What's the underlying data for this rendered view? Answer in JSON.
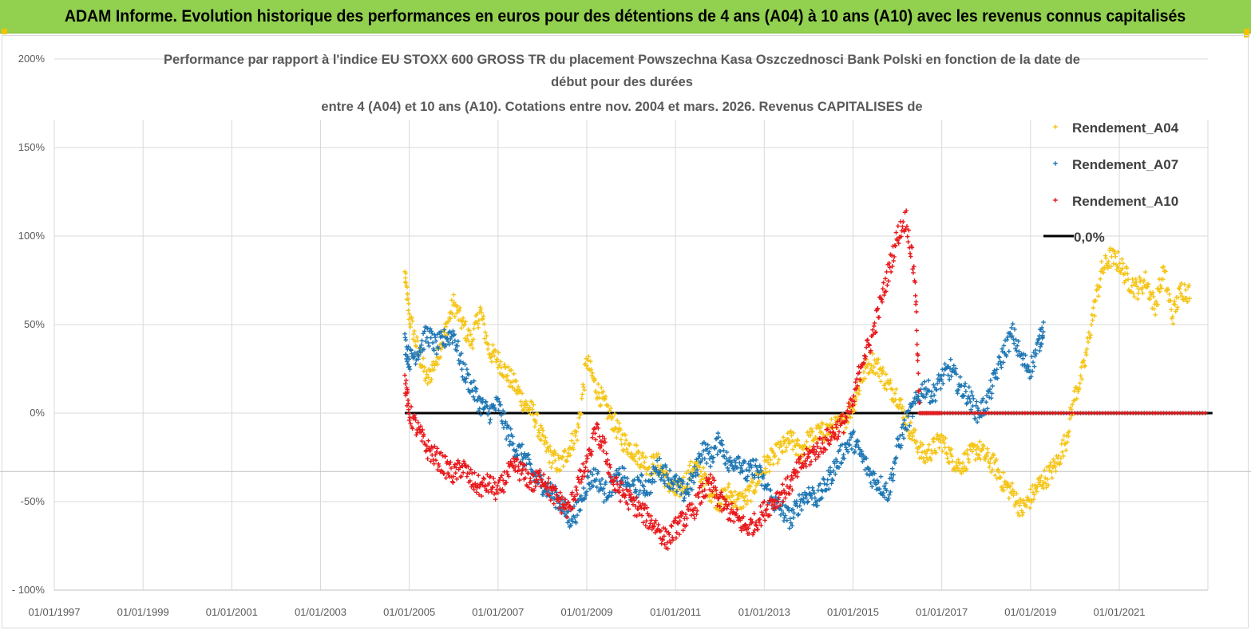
{
  "banner": {
    "title": "ADAM Informe. Evolution historique des performances en euros pour des détentions de 4 ans (A04) à 10 ans (A10) avec les revenus connus capitalisés"
  },
  "colors": {
    "banner_bg": "#92d050",
    "a04": "#f5c518",
    "a07": "#1f77b4",
    "a10": "#e8191c",
    "zero": "#000000"
  },
  "chart_data": {
    "type": "scatter",
    "title_lines": [
      "Performance par rapport à l'indice EU STOXX 600 GROSS TR  du placement Powszechna Kasa Oszczednosci Bank Polski en fonction de la date de",
      "début pour des durées",
      "entre 4 (A04) et 10 ans (A10). Cotations entre nov. 2004 et mars. 2026. Revenus CAPITALISES de"
    ],
    "x_ticks": [
      "01/01/1997",
      "01/01/1999",
      "01/01/2001",
      "01/01/2003",
      "01/01/2005",
      "01/01/2007",
      "01/01/2009",
      "01/01/2011",
      "01/01/2013",
      "01/01/2015",
      "01/01/2017",
      "01/01/2019",
      "01/01/2021"
    ],
    "x_range_years": [
      1997,
      2023.1
    ],
    "y_ticks": [
      "200%",
      "150%",
      "100%",
      "50%",
      "0%",
      "-50%",
      "- 100%"
    ],
    "y_tick_values": [
      200,
      150,
      100,
      50,
      0,
      -50,
      -100
    ],
    "ylim": [
      -100,
      200
    ],
    "legend": [
      "Rendement_A04",
      "Rendement_A07",
      "Rendement_A10",
      "0,0%"
    ],
    "series": [
      {
        "name": "Rendement_A04",
        "points": [
          [
            2004.9,
            78
          ],
          [
            2005.0,
            55
          ],
          [
            2005.2,
            35
          ],
          [
            2005.4,
            18
          ],
          [
            2005.6,
            30
          ],
          [
            2005.8,
            45
          ],
          [
            2006.0,
            62
          ],
          [
            2006.2,
            50
          ],
          [
            2006.4,
            40
          ],
          [
            2006.6,
            58
          ],
          [
            2006.8,
            35
          ],
          [
            2007.0,
            30
          ],
          [
            2007.2,
            22
          ],
          [
            2007.4,
            15
          ],
          [
            2007.6,
            5
          ],
          [
            2007.8,
            0
          ],
          [
            2008.0,
            -15
          ],
          [
            2008.2,
            -25
          ],
          [
            2008.4,
            -30
          ],
          [
            2008.6,
            -20
          ],
          [
            2008.8,
            -10
          ],
          [
            2009.0,
            30
          ],
          [
            2009.2,
            15
          ],
          [
            2009.4,
            5
          ],
          [
            2009.6,
            -5
          ],
          [
            2009.8,
            -15
          ],
          [
            2010.0,
            -20
          ],
          [
            2010.2,
            -25
          ],
          [
            2010.4,
            -30
          ],
          [
            2010.6,
            -28
          ],
          [
            2010.8,
            -38
          ],
          [
            2011.0,
            -45
          ],
          [
            2011.2,
            -40
          ],
          [
            2011.4,
            -30
          ],
          [
            2011.6,
            -35
          ],
          [
            2011.8,
            -45
          ],
          [
            2012.0,
            -50
          ],
          [
            2012.2,
            -45
          ],
          [
            2012.4,
            -50
          ],
          [
            2012.6,
            -48
          ],
          [
            2012.8,
            -40
          ],
          [
            2013.0,
            -30
          ],
          [
            2013.2,
            -25
          ],
          [
            2013.4,
            -20
          ],
          [
            2013.6,
            -15
          ],
          [
            2013.8,
            -22
          ],
          [
            2014.0,
            -15
          ],
          [
            2014.2,
            -12
          ],
          [
            2014.4,
            -10
          ],
          [
            2014.6,
            -8
          ],
          [
            2014.8,
            -5
          ],
          [
            2015.0,
            5
          ],
          [
            2015.2,
            20
          ],
          [
            2015.4,
            30
          ],
          [
            2015.6,
            25
          ],
          [
            2015.8,
            15
          ],
          [
            2016.0,
            10
          ],
          [
            2016.2,
            -5
          ],
          [
            2016.4,
            -15
          ],
          [
            2016.6,
            -25
          ],
          [
            2016.8,
            -20
          ],
          [
            2017.0,
            -15
          ],
          [
            2017.2,
            -25
          ],
          [
            2017.4,
            -30
          ],
          [
            2017.6,
            -25
          ],
          [
            2017.8,
            -20
          ],
          [
            2018.0,
            -25
          ],
          [
            2018.2,
            -30
          ],
          [
            2018.4,
            -40
          ],
          [
            2018.6,
            -45
          ],
          [
            2018.8,
            -55
          ],
          [
            2019.0,
            -48
          ],
          [
            2019.2,
            -40
          ],
          [
            2019.4,
            -35
          ],
          [
            2019.6,
            -28
          ],
          [
            2019.8,
            -15
          ],
          [
            2020.0,
            10
          ],
          [
            2020.2,
            25
          ],
          [
            2020.4,
            55
          ],
          [
            2020.6,
            80
          ],
          [
            2020.8,
            88
          ],
          [
            2021.0,
            85
          ],
          [
            2021.2,
            75
          ],
          [
            2021.4,
            70
          ],
          [
            2021.6,
            75
          ],
          [
            2021.8,
            60
          ],
          [
            2022.0,
            80
          ],
          [
            2022.2,
            55
          ],
          [
            2022.4,
            70
          ],
          [
            2022.6,
            68
          ]
        ]
      },
      {
        "name": "Rendement_A07",
        "points": [
          [
            2004.9,
            40
          ],
          [
            2005.0,
            30
          ],
          [
            2005.2,
            35
          ],
          [
            2005.4,
            45
          ],
          [
            2005.6,
            38
          ],
          [
            2005.8,
            42
          ],
          [
            2006.0,
            45
          ],
          [
            2006.2,
            25
          ],
          [
            2006.4,
            15
          ],
          [
            2006.6,
            5
          ],
          [
            2006.8,
            0
          ],
          [
            2007.0,
            5
          ],
          [
            2007.2,
            -10
          ],
          [
            2007.4,
            -20
          ],
          [
            2007.6,
            -25
          ],
          [
            2007.8,
            -35
          ],
          [
            2008.0,
            -40
          ],
          [
            2008.2,
            -45
          ],
          [
            2008.4,
            -50
          ],
          [
            2008.6,
            -60
          ],
          [
            2008.8,
            -55
          ],
          [
            2009.0,
            -40
          ],
          [
            2009.2,
            -35
          ],
          [
            2009.4,
            -45
          ],
          [
            2009.6,
            -40
          ],
          [
            2009.8,
            -35
          ],
          [
            2010.0,
            -45
          ],
          [
            2010.2,
            -40
          ],
          [
            2010.4,
            -42
          ],
          [
            2010.6,
            -30
          ],
          [
            2010.8,
            -35
          ],
          [
            2011.0,
            -40
          ],
          [
            2011.2,
            -45
          ],
          [
            2011.4,
            -38
          ],
          [
            2011.6,
            -20
          ],
          [
            2011.8,
            -25
          ],
          [
            2012.0,
            -15
          ],
          [
            2012.2,
            -30
          ],
          [
            2012.4,
            -25
          ],
          [
            2012.6,
            -35
          ],
          [
            2012.8,
            -30
          ],
          [
            2013.0,
            -40
          ],
          [
            2013.2,
            -50
          ],
          [
            2013.4,
            -55
          ],
          [
            2013.6,
            -60
          ],
          [
            2013.8,
            -50
          ],
          [
            2014.0,
            -45
          ],
          [
            2014.2,
            -48
          ],
          [
            2014.4,
            -40
          ],
          [
            2014.6,
            -30
          ],
          [
            2014.8,
            -20
          ],
          [
            2015.0,
            -15
          ],
          [
            2015.2,
            -25
          ],
          [
            2015.4,
            -35
          ],
          [
            2015.6,
            -40
          ],
          [
            2015.8,
            -45
          ],
          [
            2016.0,
            -20
          ],
          [
            2016.2,
            -5
          ],
          [
            2016.4,
            5
          ],
          [
            2016.6,
            15
          ],
          [
            2016.8,
            10
          ],
          [
            2017.0,
            20
          ],
          [
            2017.2,
            25
          ],
          [
            2017.4,
            15
          ],
          [
            2017.6,
            10
          ],
          [
            2017.8,
            0
          ],
          [
            2018.0,
            5
          ],
          [
            2018.2,
            20
          ],
          [
            2018.4,
            35
          ],
          [
            2018.6,
            45
          ],
          [
            2018.8,
            30
          ],
          [
            2019.0,
            25
          ],
          [
            2019.2,
            40
          ],
          [
            2019.3,
            50
          ]
        ]
      },
      {
        "name": "Rendement_A10",
        "points": [
          [
            2004.9,
            18
          ],
          [
            2005.0,
            0
          ],
          [
            2005.2,
            -10
          ],
          [
            2005.4,
            -20
          ],
          [
            2005.6,
            -25
          ],
          [
            2005.8,
            -30
          ],
          [
            2006.0,
            -35
          ],
          [
            2006.2,
            -30
          ],
          [
            2006.4,
            -38
          ],
          [
            2006.6,
            -42
          ],
          [
            2006.8,
            -40
          ],
          [
            2007.0,
            -45
          ],
          [
            2007.2,
            -35
          ],
          [
            2007.4,
            -30
          ],
          [
            2007.6,
            -35
          ],
          [
            2007.8,
            -40
          ],
          [
            2008.0,
            -35
          ],
          [
            2008.2,
            -45
          ],
          [
            2008.4,
            -50
          ],
          [
            2008.6,
            -55
          ],
          [
            2008.8,
            -40
          ],
          [
            2009.0,
            -30
          ],
          [
            2009.2,
            -10
          ],
          [
            2009.4,
            -20
          ],
          [
            2009.6,
            -40
          ],
          [
            2009.8,
            -45
          ],
          [
            2010.0,
            -50
          ],
          [
            2010.2,
            -55
          ],
          [
            2010.4,
            -60
          ],
          [
            2010.6,
            -65
          ],
          [
            2010.8,
            -72
          ],
          [
            2011.0,
            -65
          ],
          [
            2011.2,
            -60
          ],
          [
            2011.4,
            -55
          ],
          [
            2011.6,
            -45
          ],
          [
            2011.8,
            -40
          ],
          [
            2012.0,
            -50
          ],
          [
            2012.2,
            -55
          ],
          [
            2012.4,
            -60
          ],
          [
            2012.6,
            -65
          ],
          [
            2012.8,
            -62
          ],
          [
            2013.0,
            -55
          ],
          [
            2013.2,
            -50
          ],
          [
            2013.4,
            -45
          ],
          [
            2013.6,
            -40
          ],
          [
            2013.8,
            -30
          ],
          [
            2014.0,
            -25
          ],
          [
            2014.2,
            -20
          ],
          [
            2014.4,
            -15
          ],
          [
            2014.6,
            -10
          ],
          [
            2014.8,
            -5
          ],
          [
            2015.0,
            5
          ],
          [
            2015.2,
            30
          ],
          [
            2015.4,
            40
          ],
          [
            2015.6,
            60
          ],
          [
            2015.8,
            80
          ],
          [
            2016.0,
            100
          ],
          [
            2016.2,
            110
          ],
          [
            2016.4,
            75
          ],
          [
            2016.5,
            0
          ],
          [
            2017.0,
            0
          ],
          [
            2018.0,
            0
          ],
          [
            2019.0,
            0
          ],
          [
            2020.0,
            0
          ],
          [
            2021.0,
            0
          ],
          [
            2022.0,
            0
          ],
          [
            2023.0,
            0
          ]
        ]
      },
      {
        "name": "0,0%",
        "points": [
          [
            2004.9,
            0
          ],
          [
            2023.1,
            0
          ]
        ]
      }
    ]
  }
}
